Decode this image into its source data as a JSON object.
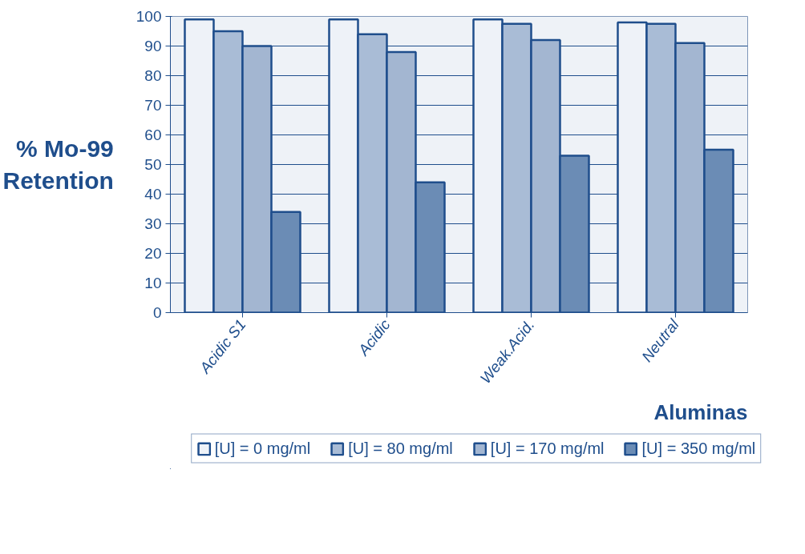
{
  "chart_data": {
    "type": "bar",
    "xlabel": "Aluminas",
    "ylabel": "% Mo-99 Retention",
    "categories": [
      "Acidic S1",
      "Acidic",
      "Weak.Acid.",
      "Neutral"
    ],
    "series": [
      {
        "name": "[U] = 0 mg/ml",
        "color": "#eef2f8",
        "values": [
          99,
          99,
          99,
          98
        ]
      },
      {
        "name": "[U] = 80 mg/ml",
        "color": "#a9bcd6",
        "values": [
          95,
          94,
          97.5,
          97.5
        ]
      },
      {
        "name": "[U] = 170 mg/ml",
        "color": "#a3b6d1",
        "values": [
          90,
          88,
          92,
          91
        ]
      },
      {
        "name": "[U] = 350 mg/ml",
        "color": "#6b8cb5",
        "values": [
          34,
          44,
          53,
          55
        ]
      }
    ],
    "ylim": [
      0,
      100
    ],
    "yticks": [
      0,
      10,
      20,
      30,
      40,
      50,
      60,
      70,
      80,
      90,
      100
    ],
    "grid": "y",
    "legend": "bottom"
  }
}
